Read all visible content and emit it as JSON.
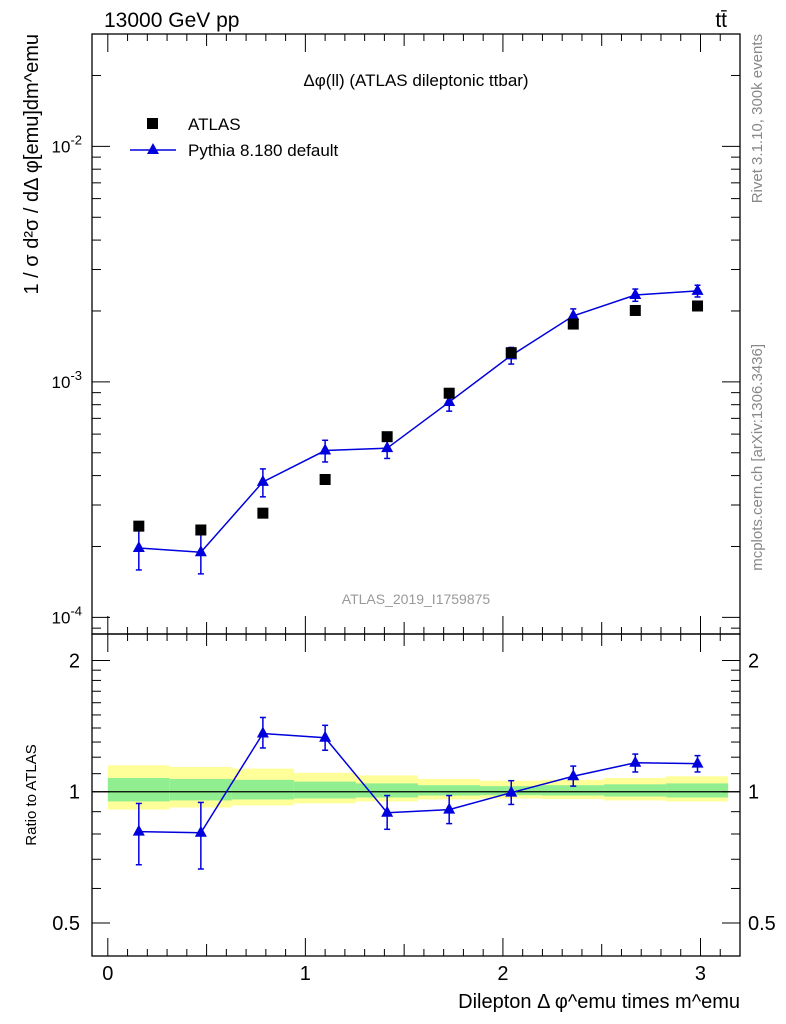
{
  "header": {
    "energy_label": "13000 GeV pp",
    "process_label": "tt̄"
  },
  "side_labels": {
    "rivet": "Rivet 3.1.10,  300k events",
    "mcplots": "mcplots.cern.ch [arXiv:1306.3436]"
  },
  "watermark": "ATLAS_2019_I1759875",
  "colors": {
    "mc": "#0000dd",
    "data": "#000000",
    "band_inner": "#90ee90",
    "band_outer": "#ffff99"
  },
  "chart_data": [
    {
      "type": "scatter",
      "panel": "main",
      "title": "Δφ(ll) (ATLAS dileptonic ttbar)",
      "ylabel": "1 / σ  d²σ / dΔ φ[emu]dm^emu",
      "y_scale": "log",
      "ylim": [
        8.5e-05,
        0.03
      ],
      "xlim": [
        -0.08,
        3.2
      ],
      "y_tick_labels": [
        "10^-4",
        "10^-3",
        "10^-2"
      ],
      "legend": {
        "placement": "top-left",
        "entries": [
          "ATLAS",
          "Pythia 8.180 default"
        ]
      },
      "x": [
        0.157,
        0.471,
        0.785,
        1.1,
        1.414,
        1.728,
        2.042,
        2.356,
        2.67,
        2.985
      ],
      "series": [
        {
          "name": "ATLAS",
          "marker": "square",
          "values": [
            0.000244,
            0.000235,
            0.000277,
            0.000385,
            0.000585,
            0.000895,
            0.00133,
            0.00176,
            0.00201,
            0.0021
          ]
        },
        {
          "name": "Pythia 8.180 default",
          "marker": "triangle",
          "values": [
            0.000197,
            0.000189,
            0.000376,
            0.000511,
            0.000523,
            0.000821,
            0.001295,
            0.001906,
            0.002338,
            0.002433
          ],
          "err_low": [
            3.8e-05,
            3.6e-05,
            5.1e-05,
            5.4e-05,
            5e-05,
            7e-05,
            0.000105,
            0.000135,
            0.00014,
            0.00014
          ],
          "err_high": [
            3.8e-05,
            3.6e-05,
            5.1e-05,
            5.4e-05,
            5e-05,
            7e-05,
            0.000105,
            0.000135,
            0.00014,
            0.00014
          ]
        }
      ]
    },
    {
      "type": "line",
      "panel": "ratio",
      "ylabel": "Ratio to ATLAS",
      "xlabel": "Dilepton Δ φ^emu times m^emu",
      "ylim": [
        0.42,
        2.3
      ],
      "xlim": [
        -0.08,
        3.2
      ],
      "x_tick_labels": [
        "0",
        "1",
        "2",
        "3"
      ],
      "y_tick_labels": [
        "0.5",
        "1",
        "2"
      ],
      "reference_line": 1,
      "band_bins": [
        {
          "x0": 0.0,
          "x1": 0.314,
          "inner": [
            0.95,
            1.075
          ],
          "outer": [
            0.91,
            1.15
          ]
        },
        {
          "x0": 0.314,
          "x1": 0.628,
          "inner": [
            0.955,
            1.07
          ],
          "outer": [
            0.92,
            1.14
          ]
        },
        {
          "x0": 0.628,
          "x1": 0.942,
          "inner": [
            0.96,
            1.065
          ],
          "outer": [
            0.93,
            1.13
          ]
        },
        {
          "x0": 0.942,
          "x1": 1.256,
          "inner": [
            0.965,
            1.055
          ],
          "outer": [
            0.94,
            1.105
          ]
        },
        {
          "x0": 1.256,
          "x1": 1.57,
          "inner": [
            0.97,
            1.045
          ],
          "outer": [
            0.95,
            1.09
          ]
        },
        {
          "x0": 1.57,
          "x1": 1.884,
          "inner": [
            0.98,
            1.035
          ],
          "outer": [
            0.96,
            1.07
          ]
        },
        {
          "x0": 1.884,
          "x1": 2.198,
          "inner": [
            0.982,
            1.03
          ],
          "outer": [
            0.965,
            1.06
          ]
        },
        {
          "x0": 2.198,
          "x1": 2.512,
          "inner": [
            0.98,
            1.035
          ],
          "outer": [
            0.962,
            1.065
          ]
        },
        {
          "x0": 2.512,
          "x1": 2.826,
          "inner": [
            0.975,
            1.04
          ],
          "outer": [
            0.955,
            1.075
          ]
        },
        {
          "x0": 2.826,
          "x1": 3.14,
          "inner": [
            0.97,
            1.045
          ],
          "outer": [
            0.95,
            1.085
          ]
        }
      ],
      "x": [
        0.157,
        0.471,
        0.785,
        1.1,
        1.414,
        1.728,
        2.042,
        2.356,
        2.67,
        2.985
      ],
      "series": [
        {
          "name": "Pythia 8.180 default",
          "values": [
            0.81,
            0.805,
            1.36,
            1.33,
            0.895,
            0.91,
            0.995,
            1.085,
            1.165,
            1.16
          ],
          "err_low": [
            0.13,
            0.14,
            0.1,
            0.085,
            0.075,
            0.065,
            0.06,
            0.055,
            0.055,
            0.05
          ],
          "err_high": [
            0.13,
            0.14,
            0.12,
            0.09,
            0.085,
            0.07,
            0.065,
            0.06,
            0.055,
            0.05
          ]
        }
      ]
    }
  ]
}
